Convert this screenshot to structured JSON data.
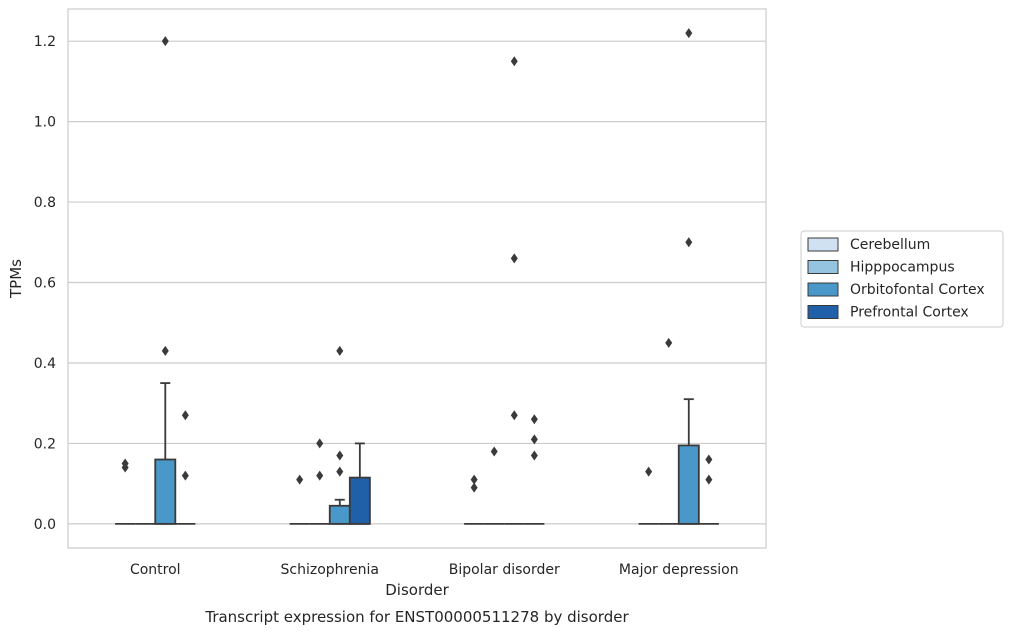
{
  "caption": "Transcript expression for ENST00000511278 by disorder",
  "chart_data": {
    "type": "box",
    "xlabel": "Disorder",
    "ylabel": "TPMs",
    "categories": [
      "Control",
      "Schizophrenia",
      "Bipolar disorder",
      "Major depression"
    ],
    "ylim": [
      -0.06,
      1.28
    ],
    "yticks": [
      0.0,
      0.2,
      0.4,
      0.6,
      0.8,
      1.0,
      1.2
    ],
    "ytick_labels": [
      "0.0",
      "0.2",
      "0.4",
      "0.6",
      "0.8",
      "1.0",
      "1.2"
    ],
    "grid": "horizontal",
    "legend_position": "right",
    "series": [
      {
        "name": "Cerebellum",
        "color": "#d0e1f2",
        "boxes": [
          {
            "q1": 0,
            "median": 0,
            "q3": 0,
            "whisker_high": 0,
            "outliers": [
              0.14,
              0.15
            ]
          },
          {
            "q1": 0,
            "median": 0,
            "q3": 0,
            "whisker_high": 0,
            "outliers": [
              0.11
            ]
          },
          {
            "q1": 0,
            "median": 0,
            "q3": 0,
            "whisker_high": 0,
            "outliers": [
              0.09,
              0.11
            ]
          },
          {
            "q1": 0,
            "median": 0,
            "q3": 0,
            "whisker_high": 0,
            "outliers": [
              0.13
            ]
          }
        ]
      },
      {
        "name": "Hipppocampus",
        "color": "#94c4df",
        "boxes": [
          {
            "q1": 0,
            "median": 0,
            "q3": 0,
            "whisker_high": 0,
            "outliers": []
          },
          {
            "q1": 0,
            "median": 0,
            "q3": 0,
            "whisker_high": 0,
            "outliers": [
              0.12,
              0.2
            ]
          },
          {
            "q1": 0,
            "median": 0,
            "q3": 0,
            "whisker_high": 0,
            "outliers": [
              0.18
            ]
          },
          {
            "q1": 0,
            "median": 0,
            "q3": 0,
            "whisker_high": 0,
            "outliers": [
              0.45
            ]
          }
        ]
      },
      {
        "name": "Orbitofontal Cortex",
        "color": "#4a98c9",
        "boxes": [
          {
            "q1": 0,
            "median": 0,
            "q3": 0.16,
            "whisker_high": 0.35,
            "outliers": [
              0.43,
              1.2
            ]
          },
          {
            "q1": 0,
            "median": 0,
            "q3": 0.045,
            "whisker_high": 0.06,
            "outliers": [
              0.13,
              0.17,
              0.43
            ]
          },
          {
            "q1": 0,
            "median": 0,
            "q3": 0,
            "whisker_high": 0,
            "outliers": [
              0.27,
              0.66,
              1.15
            ]
          },
          {
            "q1": 0,
            "median": 0,
            "q3": 0.195,
            "whisker_high": 0.31,
            "outliers": [
              0.7,
              1.22
            ]
          }
        ]
      },
      {
        "name": "Prefrontal Cortex",
        "color": "#2060a8",
        "boxes": [
          {
            "q1": 0,
            "median": 0,
            "q3": 0,
            "whisker_high": 0,
            "outliers": [
              0.12,
              0.27
            ]
          },
          {
            "q1": 0,
            "median": 0,
            "q3": 0.115,
            "whisker_high": 0.2,
            "outliers": []
          },
          {
            "q1": 0,
            "median": 0,
            "q3": 0,
            "whisker_high": 0,
            "outliers": [
              0.17,
              0.21,
              0.26
            ]
          },
          {
            "q1": 0,
            "median": 0,
            "q3": 0,
            "whisker_high": 0,
            "outliers": [
              0.11,
              0.16
            ]
          }
        ]
      }
    ]
  }
}
